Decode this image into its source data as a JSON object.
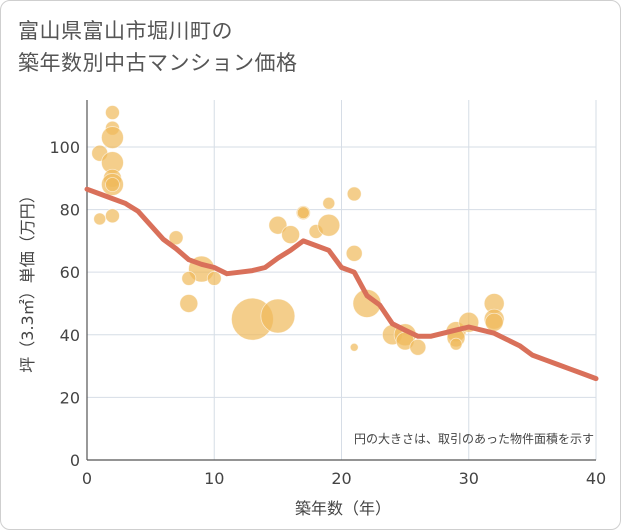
{
  "title_line1": "富山県富山市堀川町の",
  "title_line2": "築年数別中古マンション価格",
  "chart_data": {
    "type": "scatter",
    "title": "富山県富山市堀川町の築年数別中古マンション価格",
    "xlabel": "築年数（年）",
    "ylabel": "坪（3.3㎡）単価（万円）",
    "xlim": [
      0,
      40
    ],
    "ylim": [
      0,
      115
    ],
    "xticks": [
      0,
      10,
      20,
      30,
      40
    ],
    "yticks": [
      0,
      20,
      40,
      60,
      80,
      100
    ],
    "grid": true,
    "note": "円の大きさは、取引のあった物件面積を示す",
    "colors": {
      "bubble": "#f0b95a",
      "line": "#d9705a",
      "grid": "#d6dde6"
    },
    "bubbles": [
      {
        "x": 2,
        "y": 111,
        "s": 7
      },
      {
        "x": 2,
        "y": 106,
        "s": 7
      },
      {
        "x": 2,
        "y": 103,
        "s": 11
      },
      {
        "x": 1,
        "y": 98,
        "s": 8
      },
      {
        "x": 2,
        "y": 95,
        "s": 11
      },
      {
        "x": 2,
        "y": 90,
        "s": 9
      },
      {
        "x": 2,
        "y": 88,
        "s": 11
      },
      {
        "x": 2,
        "y": 88,
        "s": 7
      },
      {
        "x": 1,
        "y": 77,
        "s": 6
      },
      {
        "x": 2,
        "y": 78,
        "s": 7
      },
      {
        "x": 7,
        "y": 71,
        "s": 7
      },
      {
        "x": 9,
        "y": 61,
        "s": 13
      },
      {
        "x": 8,
        "y": 58,
        "s": 7
      },
      {
        "x": 10,
        "y": 58,
        "s": 7
      },
      {
        "x": 8,
        "y": 50,
        "s": 9
      },
      {
        "x": 13,
        "y": 45,
        "s": 21
      },
      {
        "x": 15,
        "y": 46,
        "s": 17
      },
      {
        "x": 15,
        "y": 75,
        "s": 9
      },
      {
        "x": 16,
        "y": 72,
        "s": 9
      },
      {
        "x": 17,
        "y": 79,
        "s": 7
      },
      {
        "x": 17,
        "y": 79,
        "s": 6
      },
      {
        "x": 18,
        "y": 73,
        "s": 7
      },
      {
        "x": 19,
        "y": 75,
        "s": 11
      },
      {
        "x": 19,
        "y": 82,
        "s": 6
      },
      {
        "x": 21,
        "y": 85,
        "s": 7
      },
      {
        "x": 21,
        "y": 66,
        "s": 8
      },
      {
        "x": 21,
        "y": 36,
        "s": 4
      },
      {
        "x": 22,
        "y": 50,
        "s": 14
      },
      {
        "x": 24,
        "y": 40,
        "s": 10
      },
      {
        "x": 25,
        "y": 40,
        "s": 11
      },
      {
        "x": 25,
        "y": 38,
        "s": 9
      },
      {
        "x": 26,
        "y": 36,
        "s": 8
      },
      {
        "x": 29,
        "y": 41,
        "s": 10
      },
      {
        "x": 29,
        "y": 39,
        "s": 9
      },
      {
        "x": 29,
        "y": 37,
        "s": 6
      },
      {
        "x": 30,
        "y": 44,
        "s": 10
      },
      {
        "x": 32,
        "y": 50,
        "s": 10
      },
      {
        "x": 32,
        "y": 45,
        "s": 10
      },
      {
        "x": 32,
        "y": 44,
        "s": 9
      }
    ],
    "trend": {
      "x": [
        0,
        1,
        2,
        3,
        4,
        5,
        6,
        7,
        8,
        9,
        10,
        11,
        12,
        13,
        14,
        15,
        16,
        17,
        18,
        19,
        20,
        21,
        22,
        23,
        24,
        25,
        26,
        27,
        28,
        29,
        30,
        31,
        32,
        33,
        34,
        35,
        36,
        37,
        38,
        39,
        40
      ],
      "y": [
        86.5,
        85,
        83.5,
        82,
        79.5,
        75,
        70.5,
        67.5,
        64,
        62.5,
        61.5,
        59.5,
        60,
        60.5,
        61.5,
        64.5,
        67,
        70,
        68.5,
        67,
        61.5,
        60,
        52.5,
        49.5,
        43.5,
        41.5,
        39.5,
        39.5,
        40.5,
        41.5,
        42.5,
        41.5,
        40.5,
        38.5,
        36.5,
        33.5,
        32,
        30.5,
        29,
        27.5,
        26
      ]
    }
  }
}
